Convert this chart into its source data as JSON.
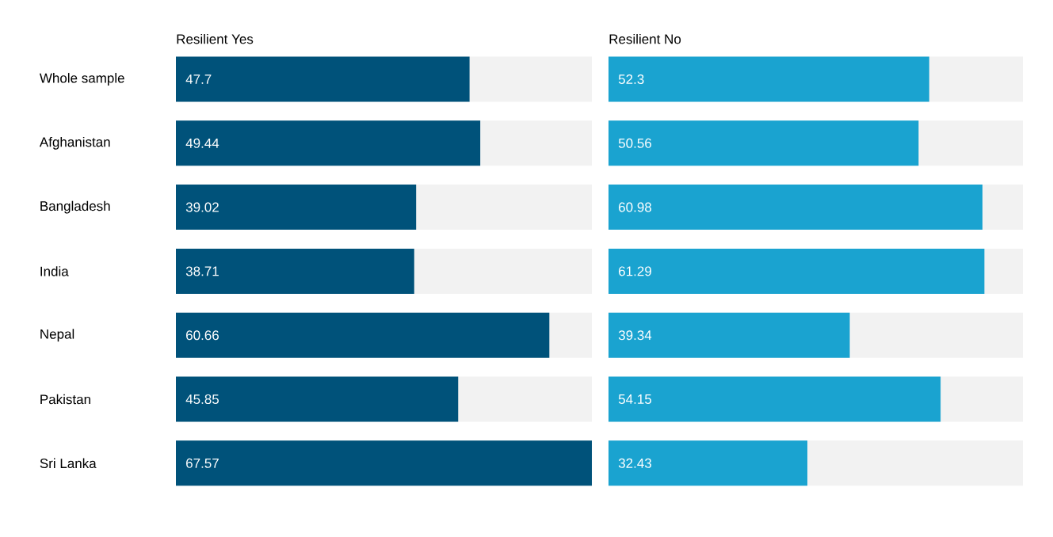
{
  "chart_data": [
    {
      "type": "bar",
      "orientation": "horizontal",
      "title": "Resilient Yes",
      "categories": [
        "Whole sample",
        "Afghanistan",
        "Bangladesh",
        "India",
        "Nepal",
        "Pakistan",
        "Sri Lanka"
      ],
      "values": [
        47.7,
        49.44,
        39.02,
        38.71,
        60.66,
        45.85,
        67.57
      ],
      "color": "#00527a",
      "xlim": [
        0,
        67.57
      ],
      "data_labels": true,
      "tick_labels": "y"
    },
    {
      "type": "bar",
      "orientation": "horizontal",
      "title": "Resilient No",
      "categories": [
        null,
        null,
        null,
        null,
        null,
        null,
        null
      ],
      "values": [
        52.3,
        50.56,
        60.98,
        61.29,
        39.34,
        54.15,
        32.43
      ],
      "color": "#1aa3d0",
      "xlim": [
        0,
        67.57
      ],
      "data_labels": true
    }
  ]
}
